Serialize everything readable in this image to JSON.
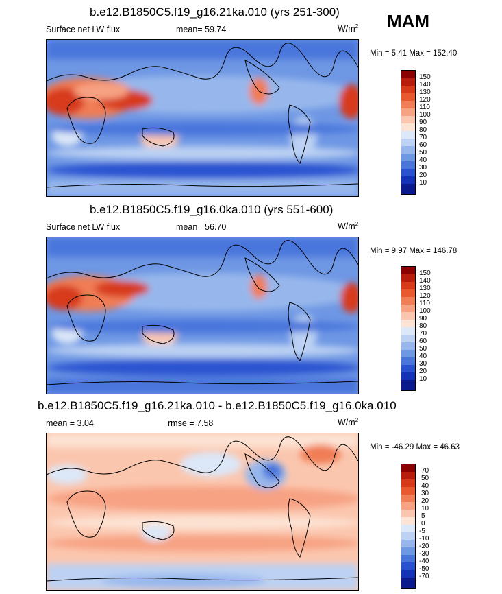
{
  "season": "MAM",
  "panels": [
    {
      "title": "b.e12.B1850C5.f19_g16.21ka.010 (yrs 251-300)",
      "left_label": "Surface net LW flux",
      "mid_label": "mean=  59.74",
      "units": "W/m",
      "units_sup": "2",
      "minmax": "Min =   5.41 Max = 152.40",
      "colorbar_labels": [
        "150",
        "140",
        "130",
        "120",
        "110",
        "100",
        "90",
        "80",
        "70",
        "60",
        "50",
        "40",
        "30",
        "20",
        "10"
      ],
      "colorbar_colors": [
        "#8b0000",
        "#b71c0c",
        "#d73a1a",
        "#e8592e",
        "#f07d55",
        "#f7a283",
        "#fbc6ae",
        "#fde3d4",
        "#dce7f8",
        "#bcd1f3",
        "#97b7ec",
        "#6e97e4",
        "#4a76dc",
        "#2a52d0",
        "#1432b8",
        "#0a1a8c"
      ]
    },
    {
      "title": "b.e12.B1850C5.f19_g16.0ka.010 (yrs 551-600)",
      "left_label": "Surface net LW flux",
      "mid_label": "mean=  56.70",
      "units": "W/m",
      "units_sup": "2",
      "minmax": "Min =   9.97 Max = 146.78",
      "colorbar_labels": [
        "150",
        "140",
        "130",
        "120",
        "110",
        "100",
        "90",
        "80",
        "70",
        "60",
        "50",
        "40",
        "30",
        "20",
        "10"
      ],
      "colorbar_colors": [
        "#8b0000",
        "#b71c0c",
        "#d73a1a",
        "#e8592e",
        "#f07d55",
        "#f7a283",
        "#fbc6ae",
        "#fde3d4",
        "#dce7f8",
        "#bcd1f3",
        "#97b7ec",
        "#6e97e4",
        "#4a76dc",
        "#2a52d0",
        "#1432b8",
        "#0a1a8c"
      ]
    },
    {
      "title": "b.e12.B1850C5.f19_g16.21ka.010 - b.e12.B1850C5.f19_g16.0ka.010",
      "left_label": "mean =   3.04",
      "mid_label": "rmse =   7.58",
      "units": "W/m",
      "units_sup": "2",
      "minmax": "Min = -46.29 Max =  46.63",
      "colorbar_labels": [
        "70",
        "50",
        "40",
        "30",
        "20",
        "10",
        "5",
        "0",
        "-5",
        "-10",
        "-20",
        "-30",
        "-40",
        "-50",
        "-70"
      ],
      "colorbar_colors": [
        "#8b0000",
        "#b71c0c",
        "#d73a1a",
        "#e8592e",
        "#f07d55",
        "#f7a283",
        "#fbc6ae",
        "#fde3d4",
        "#dce7f8",
        "#bcd1f3",
        "#97b7ec",
        "#6e97e4",
        "#4a76dc",
        "#2a52d0",
        "#1432b8",
        "#0a1a8c"
      ]
    }
  ],
  "chart_data": [
    {
      "type": "heatmap",
      "title": "b.e12.B1850C5.f19_g16.21ka.010 (yrs 251-300)",
      "variable": "Surface net LW flux",
      "units": "W/m2",
      "mean": 59.74,
      "min": 5.41,
      "max": 152.4,
      "levels": [
        10,
        20,
        30,
        40,
        50,
        60,
        70,
        80,
        90,
        100,
        110,
        120,
        130,
        140,
        150
      ]
    },
    {
      "type": "heatmap",
      "title": "b.e12.B1850C5.f19_g16.0ka.010 (yrs 551-600)",
      "variable": "Surface net LW flux",
      "units": "W/m2",
      "mean": 56.7,
      "min": 9.97,
      "max": 146.78,
      "levels": [
        10,
        20,
        30,
        40,
        50,
        60,
        70,
        80,
        90,
        100,
        110,
        120,
        130,
        140,
        150
      ]
    },
    {
      "type": "heatmap",
      "title": "b.e12.B1850C5.f19_g16.21ka.010 - b.e12.B1850C5.f19_g16.0ka.010",
      "units": "W/m2",
      "mean": 3.04,
      "rmse": 7.58,
      "min": -46.29,
      "max": 46.63,
      "levels": [
        -70,
        -50,
        -40,
        -30,
        -20,
        -10,
        -5,
        0,
        5,
        10,
        20,
        30,
        40,
        50,
        70
      ]
    }
  ]
}
